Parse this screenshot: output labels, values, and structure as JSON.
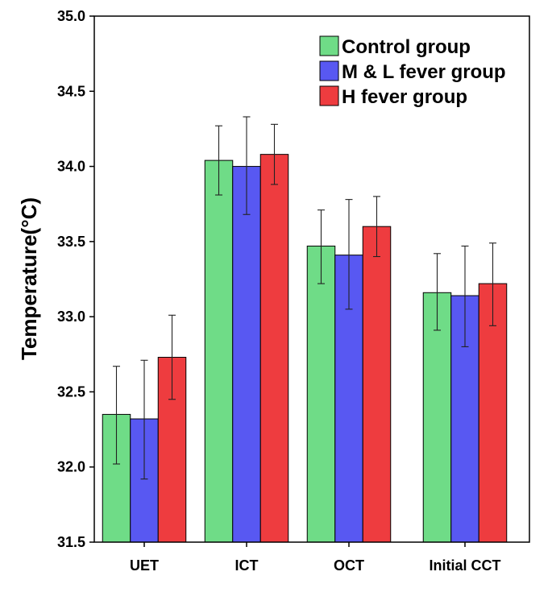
{
  "chart_data": {
    "type": "bar",
    "title": "",
    "xlabel": "",
    "ylabel": "Temperature(°C)",
    "ylim": [
      31.5,
      35.0
    ],
    "yticks": [
      "31.5",
      "32.0",
      "32.5",
      "33.0",
      "33.5",
      "34.0",
      "34.5",
      "35.0"
    ],
    "legend_position": "top-right",
    "categories": [
      "UET",
      "ICT",
      "OCT",
      "Initial CCT"
    ],
    "series": [
      {
        "name": "Control group",
        "color": "#6fdc87",
        "values": [
          32.35,
          34.04,
          33.47,
          33.16
        ],
        "err_low": [
          32.02,
          33.81,
          33.22,
          32.91
        ],
        "err_high": [
          32.67,
          34.27,
          33.71,
          33.42
        ]
      },
      {
        "name": "M & L fever group",
        "color": "#5858f2",
        "values": [
          32.32,
          34.0,
          33.41,
          33.14
        ],
        "err_low": [
          31.92,
          33.68,
          33.05,
          32.8
        ],
        "err_high": [
          32.71,
          34.33,
          33.78,
          33.47
        ]
      },
      {
        "name": "H fever group",
        "color": "#ee3c3f",
        "values": [
          32.73,
          34.08,
          33.6,
          33.22
        ],
        "err_low": [
          32.45,
          33.88,
          33.4,
          32.94
        ],
        "err_high": [
          33.01,
          34.28,
          33.8,
          33.49
        ]
      }
    ]
  }
}
